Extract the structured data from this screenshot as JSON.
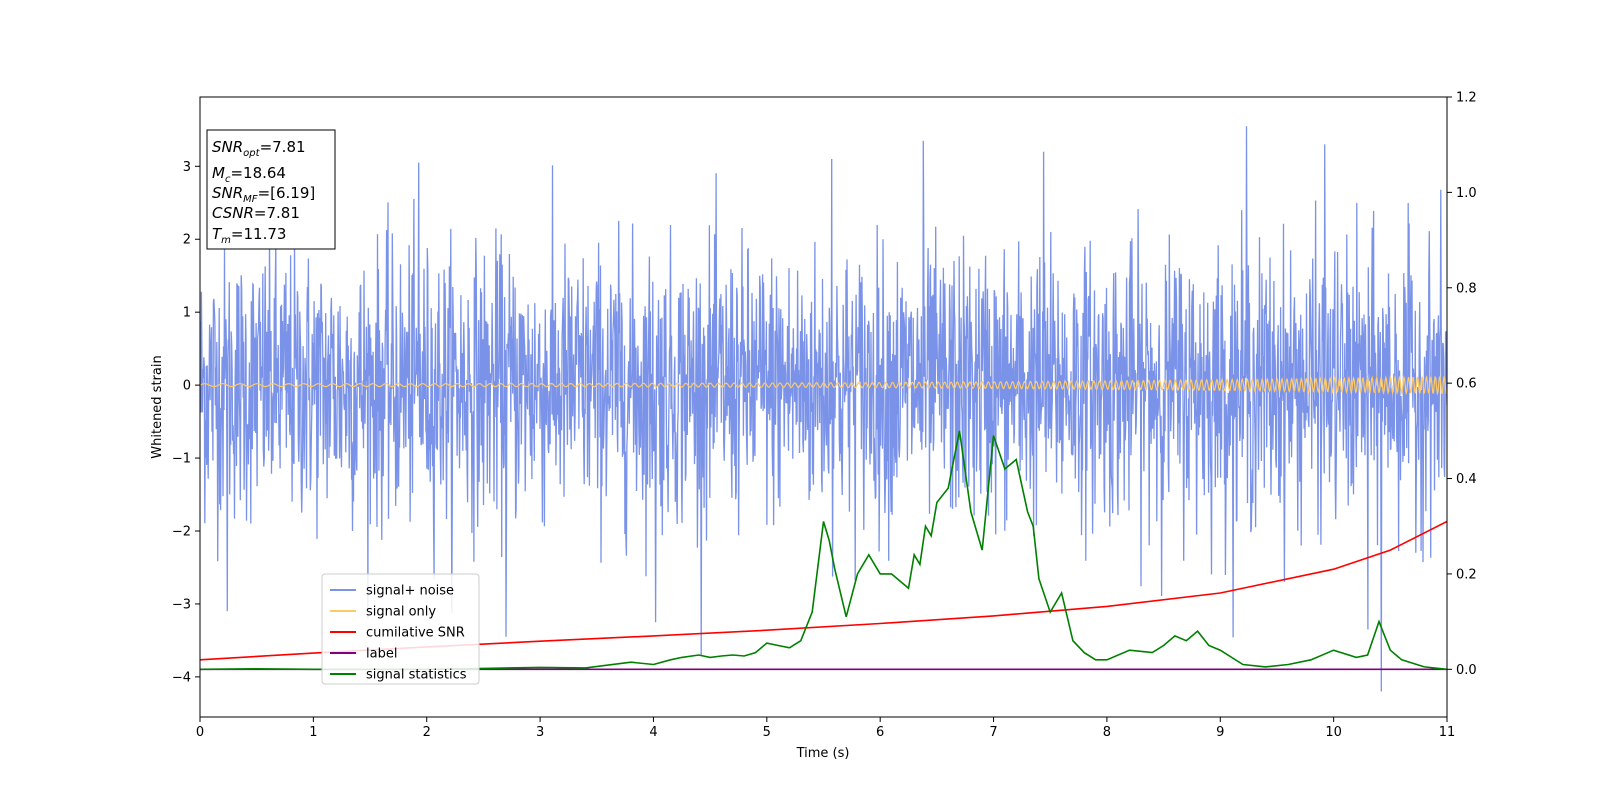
{
  "chart_data": {
    "type": "line",
    "xlabel": "Time (s)",
    "ylabel": "Whitened strain",
    "xlim": [
      0,
      11
    ],
    "ylim": [
      -4.55,
      3.95
    ],
    "y2lim": [
      -0.1,
      1.2
    ],
    "xticks": [
      "0",
      "1",
      "2",
      "3",
      "4",
      "5",
      "6",
      "7",
      "8",
      "9",
      "10",
      "11"
    ],
    "yticks": [
      "−4",
      "−3",
      "−2",
      "−1",
      "0",
      "1",
      "2",
      "3"
    ],
    "y2ticks": [
      "0.0",
      "0.2",
      "0.4",
      "0.6",
      "0.8",
      "1.0",
      "1.2"
    ],
    "grid": false,
    "legend_position": "lower-left",
    "info_box": {
      "snr_opt": {
        "base": "SNR",
        "sub": "opt",
        "value": "=7.81"
      },
      "mc": {
        "base": "M",
        "sub": "c",
        "value": "=18.64"
      },
      "snr_mf": {
        "base": "SNR",
        "sub": "MF",
        "value": "=[6.19]"
      },
      "csnr": {
        "base": "CSNR",
        "value": "=7.81"
      },
      "tm": {
        "base": "T",
        "sub": "m",
        "value": "=11.73"
      }
    },
    "series": [
      {
        "name": "signal+ noise",
        "color": "#7a93e8",
        "axis": "left",
        "kind": "noise",
        "range": [
          -4.2,
          3.6
        ],
        "typical_amplitude": 1.0,
        "spikes": [
          {
            "x": 0.24,
            "y": -3.1
          },
          {
            "x": 1.93,
            "y": 3.05
          },
          {
            "x": 2.7,
            "y": -3.45
          },
          {
            "x": 4.02,
            "y": -3.25
          },
          {
            "x": 5.57,
            "y": 3.1
          },
          {
            "x": 6.38,
            "y": 3.35
          },
          {
            "x": 7.44,
            "y": 3.2
          },
          {
            "x": 9.23,
            "y": 3.55
          },
          {
            "x": 9.92,
            "y": 3.3
          },
          {
            "x": 10.42,
            "y": -4.2
          },
          {
            "x": 10.3,
            "y": -3.35
          }
        ]
      },
      {
        "name": "signal only",
        "color": "#ffc966",
        "axis": "left",
        "kind": "chirp",
        "amplitude_start": 0.02,
        "amplitude_end": 0.12
      },
      {
        "name": "cumilative SNR",
        "color": "#ff0000",
        "axis": "right",
        "x": [
          0,
          1,
          2,
          3,
          4,
          5,
          6,
          7,
          8,
          9,
          10,
          10.5,
          11
        ],
        "y": [
          0.02,
          0.034,
          0.047,
          0.059,
          0.07,
          0.082,
          0.096,
          0.112,
          0.132,
          0.16,
          0.21,
          0.25,
          0.31
        ]
      },
      {
        "name": "label",
        "color": "#800080",
        "axis": "right",
        "x": [
          0,
          11
        ],
        "y": [
          0.0,
          0.0
        ]
      },
      {
        "name": "signal statistics",
        "color": "#008000",
        "axis": "right",
        "x": [
          0,
          0.5,
          1,
          1.5,
          2,
          2.5,
          3,
          3.4,
          3.8,
          4.0,
          4.15,
          4.25,
          4.4,
          4.5,
          4.6,
          4.7,
          4.8,
          4.9,
          5.0,
          5.1,
          5.2,
          5.3,
          5.4,
          5.5,
          5.55,
          5.6,
          5.7,
          5.8,
          5.9,
          6.0,
          6.1,
          6.2,
          6.25,
          6.3,
          6.35,
          6.4,
          6.45,
          6.5,
          6.6,
          6.7,
          6.8,
          6.9,
          7.0,
          7.1,
          7.2,
          7.3,
          7.35,
          7.4,
          7.5,
          7.6,
          7.7,
          7.8,
          7.9,
          8.0,
          8.2,
          8.4,
          8.5,
          8.6,
          8.7,
          8.8,
          8.9,
          9.0,
          9.2,
          9.4,
          9.6,
          9.8,
          10.0,
          10.2,
          10.3,
          10.4,
          10.5,
          10.6,
          10.8,
          11.0
        ],
        "y": [
          0.0,
          0.001,
          0.0,
          0.0,
          0.0,
          0.002,
          0.004,
          0.003,
          0.015,
          0.01,
          0.02,
          0.025,
          0.03,
          0.025,
          0.028,
          0.03,
          0.028,
          0.035,
          0.055,
          0.05,
          0.045,
          0.06,
          0.12,
          0.31,
          0.27,
          0.21,
          0.11,
          0.2,
          0.24,
          0.2,
          0.2,
          0.18,
          0.17,
          0.24,
          0.22,
          0.3,
          0.28,
          0.35,
          0.38,
          0.5,
          0.33,
          0.25,
          0.49,
          0.42,
          0.44,
          0.33,
          0.3,
          0.19,
          0.12,
          0.16,
          0.06,
          0.035,
          0.02,
          0.02,
          0.04,
          0.035,
          0.05,
          0.07,
          0.06,
          0.08,
          0.05,
          0.04,
          0.01,
          0.005,
          0.01,
          0.02,
          0.04,
          0.025,
          0.03,
          0.1,
          0.04,
          0.02,
          0.005,
          0.0
        ]
      }
    ]
  }
}
